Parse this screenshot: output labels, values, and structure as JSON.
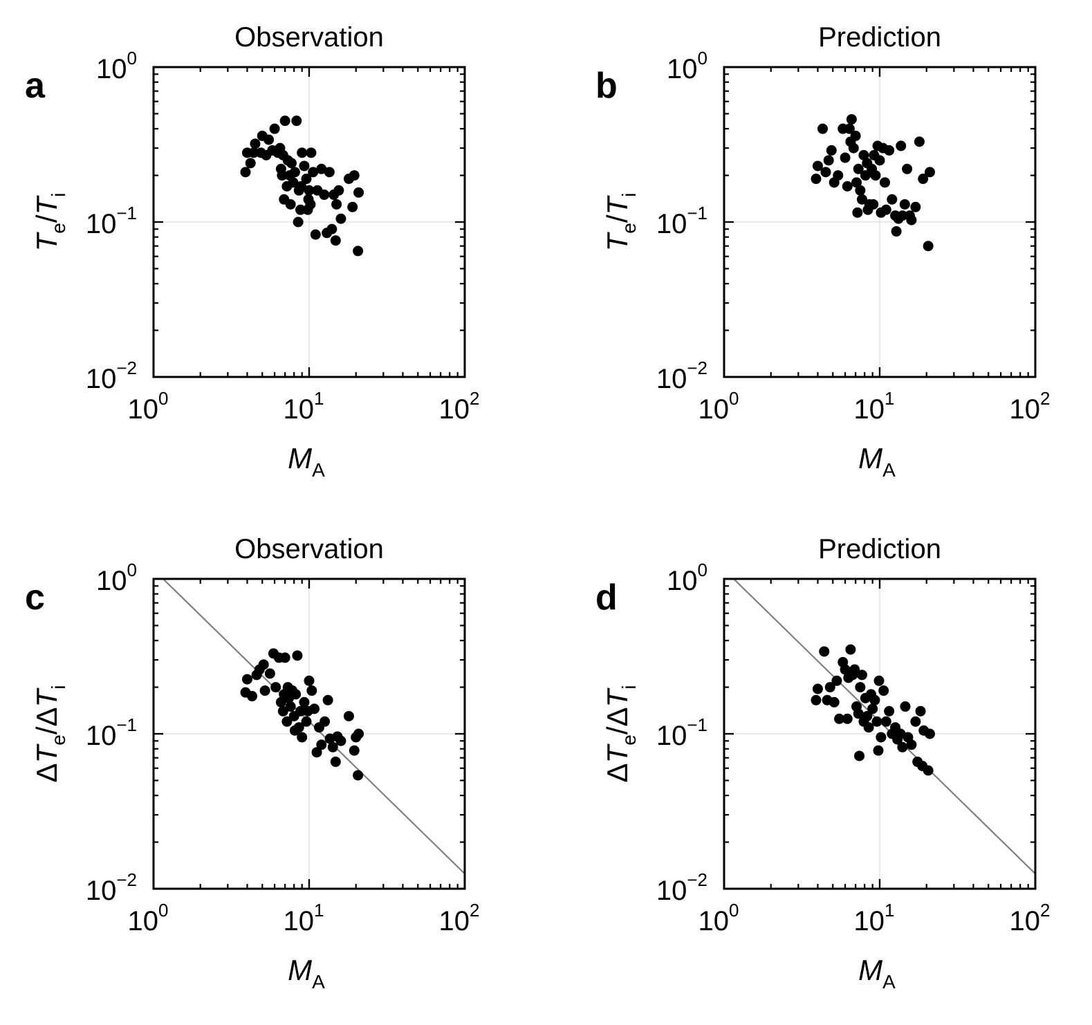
{
  "chart_data": [
    {
      "id": "a",
      "type": "scatter",
      "panel_label": "a",
      "title": "Observation",
      "xlabel": {
        "main": "M",
        "sub": "A"
      },
      "ylabel": {
        "parts": [
          {
            "t": "T",
            "italic": true
          },
          {
            "t": "e",
            "sub": true
          },
          {
            "t": "/"
          },
          {
            "t": "T",
            "italic": true
          },
          {
            "t": "i",
            "sub": true
          }
        ]
      },
      "xscale": "log",
      "yscale": "log",
      "xlim": [
        1,
        100
      ],
      "ylim": [
        0.01,
        1
      ],
      "xticks": [
        {
          "base": "10",
          "exp": "0"
        },
        {
          "base": "10",
          "exp": "1"
        },
        {
          "base": "10",
          "exp": "2"
        }
      ],
      "yticks": [
        {
          "base": "10",
          "exp": "0"
        },
        {
          "base": "10",
          "exp": "−1"
        },
        {
          "base": "10",
          "exp": "−2"
        }
      ],
      "grid": true,
      "reference_line": null,
      "points": [
        [
          3.9,
          0.21
        ],
        [
          4.2,
          0.24
        ],
        [
          4.0,
          0.28
        ],
        [
          4.4,
          0.28
        ],
        [
          4.5,
          0.32
        ],
        [
          4.9,
          0.28
        ],
        [
          5.0,
          0.36
        ],
        [
          5.3,
          0.27
        ],
        [
          5.5,
          0.34
        ],
        [
          5.8,
          0.29
        ],
        [
          6.0,
          0.4
        ],
        [
          6.3,
          0.28
        ],
        [
          6.5,
          0.3
        ],
        [
          6.8,
          0.27
        ],
        [
          7.0,
          0.45
        ],
        [
          6.6,
          0.22
        ],
        [
          7.3,
          0.25
        ],
        [
          7.7,
          0.24
        ],
        [
          8.1,
          0.21
        ],
        [
          8.3,
          0.45
        ],
        [
          7.9,
          0.18
        ],
        [
          8.6,
          0.16
        ],
        [
          9.0,
          0.28
        ],
        [
          9.3,
          0.23
        ],
        [
          9.6,
          0.19
        ],
        [
          10.0,
          0.16
        ],
        [
          10.3,
          0.28
        ],
        [
          10.6,
          0.21
        ],
        [
          9.9,
          0.14
        ],
        [
          8.8,
          0.12
        ],
        [
          8.5,
          0.1
        ],
        [
          7.6,
          0.13
        ],
        [
          6.9,
          0.14
        ],
        [
          7.2,
          0.17
        ],
        [
          9.8,
          0.12
        ],
        [
          11.0,
          0.083
        ],
        [
          11.3,
          0.16
        ],
        [
          12.0,
          0.22
        ],
        [
          12.5,
          0.15
        ],
        [
          13.0,
          0.085
        ],
        [
          13.5,
          0.21
        ],
        [
          14.0,
          0.09
        ],
        [
          14.4,
          0.15
        ],
        [
          14.8,
          0.076
        ],
        [
          15.0,
          0.13
        ],
        [
          15.5,
          0.16
        ],
        [
          16.0,
          0.105
        ],
        [
          18.0,
          0.19
        ],
        [
          19.0,
          0.125
        ],
        [
          19.5,
          0.2
        ],
        [
          20.8,
          0.155
        ],
        [
          20.6,
          0.065
        ],
        [
          7.5,
          0.2
        ],
        [
          8.9,
          0.17
        ],
        [
          6.7,
          0.2
        ],
        [
          10.2,
          0.13
        ]
      ]
    },
    {
      "id": "b",
      "type": "scatter",
      "panel_label": "b",
      "title": "Prediction",
      "xlabel": {
        "main": "M",
        "sub": "A"
      },
      "ylabel": {
        "parts": [
          {
            "t": "T",
            "italic": true
          },
          {
            "t": "e",
            "sub": true
          },
          {
            "t": "/"
          },
          {
            "t": "T",
            "italic": true
          },
          {
            "t": "i",
            "sub": true
          }
        ]
      },
      "xscale": "log",
      "yscale": "log",
      "xlim": [
        1,
        100
      ],
      "ylim": [
        0.01,
        1
      ],
      "xticks": [
        {
          "base": "10",
          "exp": "0"
        },
        {
          "base": "10",
          "exp": "1"
        },
        {
          "base": "10",
          "exp": "2"
        }
      ],
      "yticks": [
        {
          "base": "10",
          "exp": "0"
        },
        {
          "base": "10",
          "exp": "−1"
        },
        {
          "base": "10",
          "exp": "−2"
        }
      ],
      "grid": true,
      "reference_line": null,
      "points": [
        [
          3.9,
          0.19
        ],
        [
          4.0,
          0.23
        ],
        [
          4.3,
          0.4
        ],
        [
          4.5,
          0.21
        ],
        [
          4.7,
          0.25
        ],
        [
          4.9,
          0.29
        ],
        [
          5.1,
          0.18
        ],
        [
          5.4,
          0.2
        ],
        [
          5.8,
          0.4
        ],
        [
          6.0,
          0.26
        ],
        [
          6.2,
          0.17
        ],
        [
          6.4,
          0.4
        ],
        [
          6.6,
          0.46
        ],
        [
          6.8,
          0.3
        ],
        [
          7.0,
          0.36
        ],
        [
          7.1,
          0.18
        ],
        [
          7.3,
          0.22
        ],
        [
          7.5,
          0.16
        ],
        [
          7.7,
          0.14
        ],
        [
          7.9,
          0.27
        ],
        [
          8.1,
          0.2
        ],
        [
          8.3,
          0.24
        ],
        [
          8.6,
          0.13
        ],
        [
          8.9,
          0.22
        ],
        [
          9.2,
          0.27
        ],
        [
          9.4,
          0.2
        ],
        [
          9.7,
          0.31
        ],
        [
          10.0,
          0.25
        ],
        [
          10.2,
          0.115
        ],
        [
          10.5,
          0.3
        ],
        [
          10.8,
          0.18
        ],
        [
          11.0,
          0.12
        ],
        [
          11.5,
          0.29
        ],
        [
          12.0,
          0.14
        ],
        [
          12.6,
          0.11
        ],
        [
          12.8,
          0.087
        ],
        [
          13.2,
          0.105
        ],
        [
          13.7,
          0.31
        ],
        [
          14.0,
          0.11
        ],
        [
          14.5,
          0.13
        ],
        [
          15.0,
          0.22
        ],
        [
          15.6,
          0.11
        ],
        [
          16.0,
          0.103
        ],
        [
          17.0,
          0.125
        ],
        [
          18.0,
          0.33
        ],
        [
          19.0,
          0.19
        ],
        [
          20.5,
          0.07
        ],
        [
          21.0,
          0.21
        ],
        [
          7.2,
          0.115
        ],
        [
          8.4,
          0.12
        ],
        [
          6.5,
          0.33
        ],
        [
          9.1,
          0.13
        ]
      ]
    },
    {
      "id": "c",
      "type": "scatter",
      "panel_label": "c",
      "title": "Observation",
      "xlabel": {
        "main": "M",
        "sub": "A"
      },
      "ylabel": {
        "parts": [
          {
            "t": "Δ"
          },
          {
            "t": "T",
            "italic": true
          },
          {
            "t": "e",
            "sub": true
          },
          {
            "t": "/Δ"
          },
          {
            "t": "T",
            "italic": true
          },
          {
            "t": "i",
            "sub": true
          }
        ]
      },
      "xscale": "log",
      "yscale": "log",
      "xlim": [
        1,
        100
      ],
      "ylim": [
        0.01,
        1
      ],
      "xticks": [
        {
          "base": "10",
          "exp": "0"
        },
        {
          "base": "10",
          "exp": "1"
        },
        {
          "base": "10",
          "exp": "2"
        }
      ],
      "yticks": [
        {
          "base": "10",
          "exp": "0"
        },
        {
          "base": "10",
          "exp": "−1"
        },
        {
          "base": "10",
          "exp": "−2"
        }
      ],
      "grid": true,
      "reference_line": {
        "x": [
          1,
          100
        ],
        "y": [
          1.15,
          0.0125
        ]
      },
      "points": [
        [
          3.9,
          0.185
        ],
        [
          4.0,
          0.225
        ],
        [
          4.3,
          0.175
        ],
        [
          4.6,
          0.24
        ],
        [
          4.8,
          0.26
        ],
        [
          5.1,
          0.28
        ],
        [
          5.2,
          0.19
        ],
        [
          5.6,
          0.245
        ],
        [
          5.9,
          0.33
        ],
        [
          6.1,
          0.2
        ],
        [
          6.4,
          0.31
        ],
        [
          6.6,
          0.16
        ],
        [
          6.8,
          0.14
        ],
        [
          7.0,
          0.31
        ],
        [
          7.2,
          0.12
        ],
        [
          7.4,
          0.17
        ],
        [
          7.6,
          0.15
        ],
        [
          7.8,
          0.19
        ],
        [
          8.0,
          0.13
        ],
        [
          8.2,
          0.18
        ],
        [
          8.4,
          0.32
        ],
        [
          8.6,
          0.11
        ],
        [
          8.8,
          0.14
        ],
        [
          9.0,
          0.095
        ],
        [
          9.3,
          0.16
        ],
        [
          9.6,
          0.12
        ],
        [
          10.0,
          0.22
        ],
        [
          10.4,
          0.19
        ],
        [
          10.8,
          0.145
        ],
        [
          11.2,
          0.076
        ],
        [
          11.6,
          0.11
        ],
        [
          12.0,
          0.085
        ],
        [
          12.6,
          0.12
        ],
        [
          13.2,
          0.165
        ],
        [
          13.6,
          0.093
        ],
        [
          14.2,
          0.082
        ],
        [
          14.8,
          0.066
        ],
        [
          15.2,
          0.096
        ],
        [
          16.0,
          0.09
        ],
        [
          18.0,
          0.13
        ],
        [
          19.5,
          0.078
        ],
        [
          20.0,
          0.095
        ],
        [
          20.8,
          0.1
        ],
        [
          20.6,
          0.054
        ],
        [
          7.3,
          0.2
        ],
        [
          8.1,
          0.105
        ],
        [
          9.8,
          0.14
        ],
        [
          6.9,
          0.18
        ]
      ]
    },
    {
      "id": "d",
      "type": "scatter",
      "panel_label": "d",
      "title": "Prediction",
      "xlabel": {
        "main": "M",
        "sub": "A"
      },
      "ylabel": {
        "parts": [
          {
            "t": "Δ"
          },
          {
            "t": "T",
            "italic": true
          },
          {
            "t": "e",
            "sub": true
          },
          {
            "t": "/Δ"
          },
          {
            "t": "T",
            "italic": true
          },
          {
            "t": "i",
            "sub": true
          }
        ]
      },
      "xscale": "log",
      "yscale": "log",
      "xlim": [
        1,
        100
      ],
      "ylim": [
        0.01,
        1
      ],
      "xticks": [
        {
          "base": "10",
          "exp": "0"
        },
        {
          "base": "10",
          "exp": "1"
        },
        {
          "base": "10",
          "exp": "2"
        }
      ],
      "yticks": [
        {
          "base": "10",
          "exp": "0"
        },
        {
          "base": "10",
          "exp": "−1"
        },
        {
          "base": "10",
          "exp": "−2"
        }
      ],
      "grid": true,
      "reference_line": {
        "x": [
          1,
          100
        ],
        "y": [
          1.15,
          0.0125
        ]
      },
      "points": [
        [
          3.9,
          0.165
        ],
        [
          4.0,
          0.195
        ],
        [
          4.4,
          0.34
        ],
        [
          4.6,
          0.165
        ],
        [
          4.8,
          0.2
        ],
        [
          5.1,
          0.16
        ],
        [
          5.3,
          0.22
        ],
        [
          5.5,
          0.125
        ],
        [
          5.8,
          0.29
        ],
        [
          6.0,
          0.26
        ],
        [
          6.3,
          0.23
        ],
        [
          6.5,
          0.35
        ],
        [
          6.7,
          0.24
        ],
        [
          6.9,
          0.26
        ],
        [
          7.1,
          0.15
        ],
        [
          7.3,
          0.135
        ],
        [
          7.5,
          0.2
        ],
        [
          7.7,
          0.24
        ],
        [
          7.9,
          0.12
        ],
        [
          8.1,
          0.17
        ],
        [
          8.3,
          0.13
        ],
        [
          8.5,
          0.11
        ],
        [
          8.8,
          0.18
        ],
        [
          9.0,
          0.145
        ],
        [
          9.3,
          0.165
        ],
        [
          9.6,
          0.12
        ],
        [
          9.9,
          0.22
        ],
        [
          10.2,
          0.095
        ],
        [
          10.6,
          0.19
        ],
        [
          11.0,
          0.12
        ],
        [
          11.5,
          0.14
        ],
        [
          12.0,
          0.1
        ],
        [
          12.6,
          0.11
        ],
        [
          13.0,
          0.092
        ],
        [
          13.6,
          0.1
        ],
        [
          14.0,
          0.082
        ],
        [
          14.6,
          0.15
        ],
        [
          15.2,
          0.095
        ],
        [
          16.0,
          0.085
        ],
        [
          17.0,
          0.12
        ],
        [
          17.5,
          0.066
        ],
        [
          18.3,
          0.14
        ],
        [
          18.8,
          0.062
        ],
        [
          19.2,
          0.105
        ],
        [
          20.5,
          0.058
        ],
        [
          21.0,
          0.1
        ],
        [
          7.4,
          0.072
        ],
        [
          9.8,
          0.078
        ],
        [
          6.2,
          0.125
        ]
      ]
    }
  ],
  "style": {
    "marker_color": "#000000",
    "reference_line_color": "#808080",
    "grid_color": "#dcdcdc",
    "axis_color": "#000000"
  }
}
